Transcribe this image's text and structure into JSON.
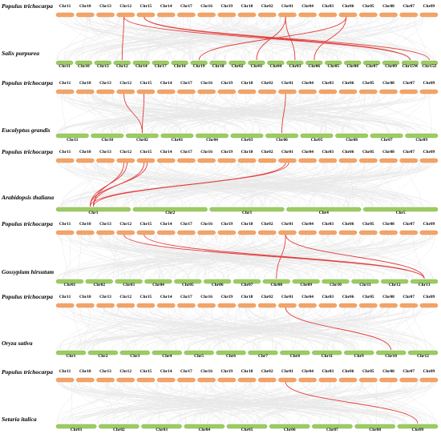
{
  "colors": {
    "reference_bar": "#f4a468",
    "reference_border": "#d98a4e",
    "target_bar": "#9ccc62",
    "target_border": "#78a844",
    "highlight_link": "#e53a3a",
    "background_link": "#d6d6d6"
  },
  "panels": [
    {
      "top_species": "Populus trichocarpa",
      "bottom_species": "Salix purpurea",
      "top_chrs": [
        "Chr11",
        "Chr10",
        "Chr13",
        "Chr12",
        "Chr15",
        "Chr14",
        "Chr17",
        "Chr16",
        "Chr19",
        "Chr18",
        "Chr02",
        "Chr01",
        "Chr04",
        "Chr03",
        "Chr06",
        "Chr05",
        "Chr08",
        "Chr07",
        "Chr09"
      ],
      "bottom_chrs": [
        "Chr11",
        "Chr10",
        "Chr13",
        "Chr12",
        "Chr14",
        "Chr17",
        "Chr16",
        "Chr19",
        "Chr18",
        "Chr02",
        "Chr01",
        "Chr04",
        "Chr03",
        "Chr06",
        "Chr05",
        "Chr08",
        "Chr07",
        "Chr09",
        "Chr15W",
        "Chr15Z"
      ],
      "links": [
        {
          "top": "Chr12",
          "bottom": "Chr12"
        },
        {
          "top": "Chr12",
          "bottom": "Chr15W"
        },
        {
          "top": "Chr15",
          "bottom": "Chr15Z"
        },
        {
          "top": "Chr15",
          "bottom": "Chr15W"
        },
        {
          "top": "Chr01",
          "bottom": "Chr01"
        },
        {
          "top": "Chr01",
          "bottom": "Chr03"
        },
        {
          "top": "Chr06",
          "bottom": "Chr06"
        },
        {
          "top": "Chr06",
          "bottom": "Chr19"
        }
      ]
    },
    {
      "top_species": "Populus trichocarpa",
      "bottom_species": "Eucalyptus grandis",
      "top_chrs": [
        "Chr11",
        "Chr10",
        "Chr13",
        "Chr12",
        "Chr15",
        "Chr14",
        "Chr17",
        "Chr16",
        "Chr19",
        "Chr18",
        "Chr02",
        "Chr01",
        "Chr04",
        "Chr03",
        "Chr06",
        "Chr05",
        "Chr08",
        "Chr07",
        "Chr09"
      ],
      "bottom_chrs": [
        "Chr11",
        "Chr10",
        "Chr02",
        "Chr01",
        "Chr04",
        "Chr03",
        "Chr06",
        "Chr05",
        "Chr08",
        "Chr07",
        "Chr09"
      ],
      "links": [
        {
          "top": "Chr12",
          "bottom": "Chr02"
        },
        {
          "top": "Chr15",
          "bottom": "Chr02"
        },
        {
          "top": "Chr01",
          "bottom": "Chr06"
        }
      ]
    },
    {
      "top_species": "Populus trichocarpa",
      "bottom_species": "Arabidopsis thaliana",
      "top_chrs": [
        "Chr11",
        "Chr10",
        "Chr13",
        "Chr12",
        "Chr15",
        "Chr14",
        "Chr17",
        "Chr16",
        "Chr19",
        "Chr18",
        "Chr02",
        "Chr01",
        "Chr04",
        "Chr03",
        "Chr06",
        "Chr05",
        "Chr08",
        "Chr07",
        "Chr09"
      ],
      "bottom_chrs": [
        "Chr1",
        "Chr2",
        "Chr3",
        "Chr4",
        "Chr5"
      ],
      "links": [
        {
          "top": "Chr12",
          "bottom": "Chr1"
        },
        {
          "top": "Chr12",
          "bottom": "Chr1"
        },
        {
          "top": "Chr15",
          "bottom": "Chr1"
        },
        {
          "top": "Chr15",
          "bottom": "Chr1"
        },
        {
          "top": "Chr01",
          "bottom": "Chr1"
        },
        {
          "top": "Chr01",
          "bottom": "Chr1"
        }
      ]
    },
    {
      "top_species": "Populus trichocarpa",
      "bottom_species": "Gossypium hirsutum",
      "top_chrs": [
        "Chr11",
        "Chr10",
        "Chr13",
        "Chr12",
        "Chr15",
        "Chr14",
        "Chr17",
        "Chr16",
        "Chr19",
        "Chr18",
        "Chr02",
        "Chr01",
        "Chr04",
        "Chr03",
        "Chr06",
        "Chr05",
        "Chr08",
        "Chr07",
        "Chr09"
      ],
      "bottom_chrs": [
        "Chr01",
        "Chr02",
        "Chr03",
        "Chr04",
        "Chr05",
        "Chr06",
        "Chr07",
        "Chr08",
        "Chr09",
        "Chr10",
        "Chr11",
        "Chr12",
        "Chr13"
      ],
      "links": [
        {
          "top": "Chr12",
          "bottom": "Chr13"
        },
        {
          "top": "Chr15",
          "bottom": "Chr13"
        },
        {
          "top": "Chr01",
          "bottom": "Chr08"
        },
        {
          "top": "Chr01",
          "bottom": "Chr13"
        }
      ]
    },
    {
      "top_species": "Populus trichocarpa",
      "bottom_species": "Oryza sativa",
      "top_chrs": [
        "Chr11",
        "Chr10",
        "Chr13",
        "Chr12",
        "Chr15",
        "Chr14",
        "Chr17",
        "Chr16",
        "Chr19",
        "Chr18",
        "Chr02",
        "Chr01",
        "Chr04",
        "Chr03",
        "Chr06",
        "Chr05",
        "Chr08",
        "Chr07",
        "Chr09"
      ],
      "bottom_chrs": [
        "Chr1",
        "Chr2",
        "Chr3",
        "Chr4",
        "Chr5",
        "Chr6",
        "Chr7",
        "Chr8",
        "Chr11",
        "Chr9",
        "Chr10",
        "Chr12"
      ],
      "links": [
        {
          "top": "Chr01",
          "bottom": "Chr10"
        }
      ]
    },
    {
      "top_species": "Populus trichocarpa",
      "bottom_species": "Setaria italica",
      "top_chrs": [
        "Chr11",
        "Chr10",
        "Chr13",
        "Chr12",
        "Chr15",
        "Chr14",
        "Chr17",
        "Chr16",
        "Chr19",
        "Chr18",
        "Chr02",
        "Chr01",
        "Chr04",
        "Chr03",
        "Chr06",
        "Chr05",
        "Chr08",
        "Chr07",
        "Chr09"
      ],
      "bottom_chrs": [
        "Chr01",
        "Chr02",
        "Chr03",
        "Chr04",
        "Chr05",
        "Chr06",
        "Chr07",
        "Chr08",
        "Chr09"
      ],
      "links": [
        {
          "top": "Chr01",
          "bottom": "Chr09"
        }
      ]
    }
  ]
}
